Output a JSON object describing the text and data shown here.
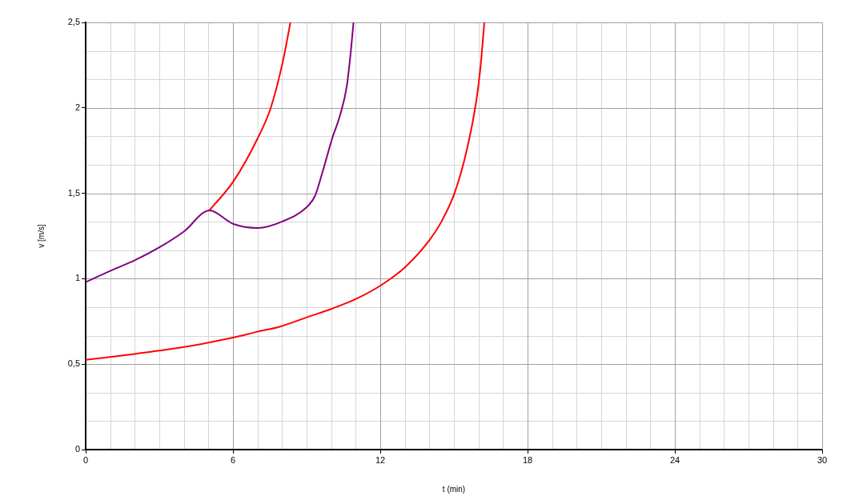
{
  "chart_data": {
    "type": "line",
    "xlabel": "t (min)",
    "ylabel": "v [m/s]",
    "xlim": [
      0,
      30
    ],
    "ylim": [
      0,
      2.5
    ],
    "xticks": [
      0,
      6,
      12,
      18,
      24,
      30
    ],
    "yticks": [
      0,
      {
        "value": 0.5,
        "label": "0,5"
      },
      1,
      {
        "value": 1.5,
        "label": "1,5"
      },
      2,
      {
        "value": 2.5,
        "label": "2,5"
      }
    ],
    "grid": true,
    "marker": "none",
    "series": [
      {
        "color": "#ff0000",
        "x": [
          5.04,
          6.02,
          7.0,
          7.54,
          8.03,
          8.34
        ],
        "values": [
          1.4,
          1.57,
          1.82,
          2.0,
          2.27,
          2.5
        ]
      },
      {
        "color": "#ff0000",
        "x": [
          0,
          2,
          4,
          6,
          7,
          7.92,
          9.01,
          10.02,
          11.03,
          12.02,
          13.03,
          14.01,
          14.5,
          15.04,
          15.53,
          15.91,
          16.07,
          16.24
        ],
        "values": [
          0.525,
          0.56,
          0.6,
          0.655,
          0.69,
          0.72,
          0.774,
          0.824,
          0.883,
          0.961,
          1.07,
          1.227,
          1.336,
          1.507,
          1.757,
          2.04,
          2.22,
          2.5
        ]
      },
      {
        "color": "#800080",
        "x": [
          0,
          1.02,
          2.03,
          3.03,
          4.01,
          5.04,
          6.02,
          7.0,
          8.03,
          9.01,
          9.34,
          9.66,
          10.04,
          10.37,
          10.64,
          10.8,
          10.91
        ],
        "values": [
          0.98,
          1.047,
          1.11,
          1.186,
          1.277,
          1.4,
          1.32,
          1.297,
          1.336,
          1.42,
          1.484,
          1.63,
          1.82,
          1.96,
          2.13,
          2.33,
          2.5
        ]
      }
    ]
  }
}
